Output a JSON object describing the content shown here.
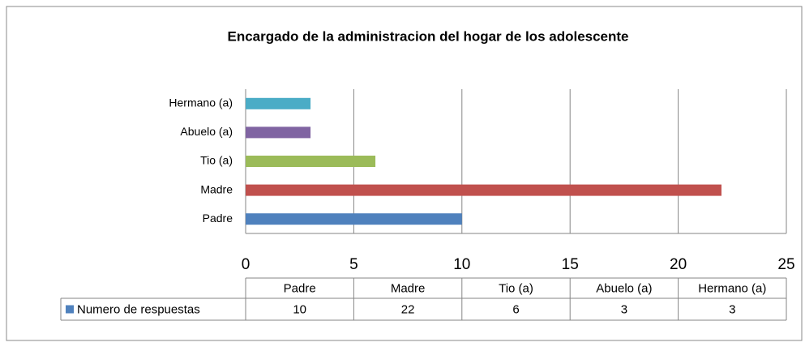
{
  "chart_data": {
    "type": "bar",
    "orientation": "horizontal",
    "title": "Encargado de la administracion del hogar de los adolescente",
    "categories": [
      "Padre",
      "Madre",
      "Tio (a)",
      "Abuelo (a)",
      "Hermano (a)"
    ],
    "series": [
      {
        "name": "Numero de respuestas",
        "color": "#4f81bd",
        "values": [
          10,
          22,
          6,
          3,
          3
        ]
      }
    ],
    "colors": [
      "#4f81bd",
      "#c0504d",
      "#9bbb59",
      "#8064a2",
      "#4bacc6"
    ],
    "xlim": [
      0,
      25
    ],
    "xticks": [
      0,
      5,
      10,
      15,
      20,
      25
    ],
    "grid": true
  }
}
